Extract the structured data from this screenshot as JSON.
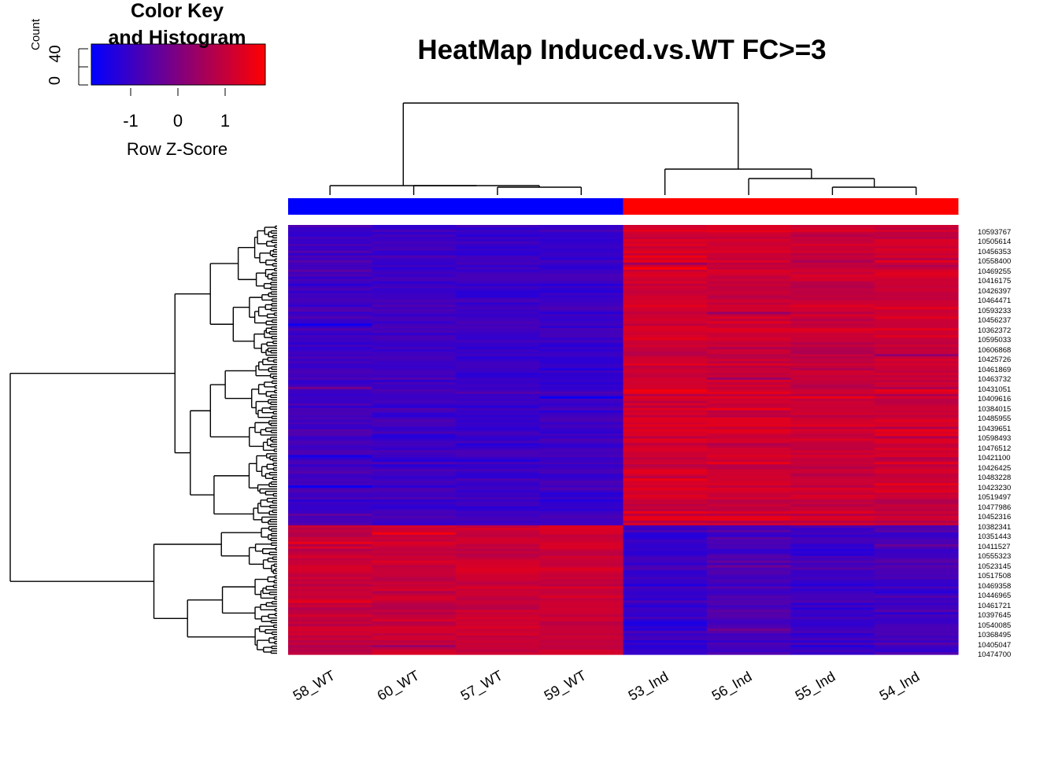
{
  "color_key": {
    "title_line1": "Color Key",
    "title_line2": "and Histogram",
    "xlabel": "Row Z-Score",
    "ylabel": "Count",
    "x_ticks": [
      "-1",
      "0",
      "1"
    ],
    "y_ticks": [
      "0",
      "40"
    ],
    "palette": [
      "#0000ff",
      "#ff0000"
    ]
  },
  "chart_data": {
    "type": "heatmap",
    "title": "HeatMap Induced.vs.WT FC>=3",
    "value_label": "Row Z-Score",
    "columns": [
      "58_WT",
      "60_WT",
      "57_WT",
      "59_WT",
      "53_Ind",
      "56_Ind",
      "55_Ind",
      "54_Ind"
    ],
    "column_groups": [
      {
        "columns": [
          "58_WT",
          "60_WT",
          "57_WT",
          "59_WT"
        ],
        "color": "#0000ff"
      },
      {
        "columns": [
          "53_Ind",
          "56_Ind",
          "55_Ind",
          "54_Ind"
        ],
        "color": "#ff0000"
      }
    ],
    "row_labels": [
      "10593767",
      "10505614",
      "10456353",
      "10558400",
      "10469255",
      "10416175",
      "10426397",
      "10464471",
      "10593233",
      "10456237",
      "10362372",
      "10595033",
      "10606868",
      "10425726",
      "10461869",
      "10463732",
      "10431051",
      "10409616",
      "10384015",
      "10485955",
      "10439651",
      "10598493",
      "10476512",
      "10421100",
      "10426425",
      "10483228",
      "10423230",
      "10519497",
      "10477986",
      "10452316",
      "10382341",
      "10351443",
      "10411527",
      "10555323",
      "10523145",
      "10517508",
      "10469358",
      "10446965",
      "10461721",
      "10397645",
      "10540085",
      "10368495",
      "10405047",
      "10474700"
    ],
    "clusters": [
      {
        "name": "",
        "rows": 128,
        "z_by_column": [
          -0.9,
          -0.95,
          -1.0,
          -1.0,
          1.15,
          1.1,
          1.0,
          1.05
        ]
      },
      {
        "name": "",
        "rows": 55,
        "z_by_column": [
          1.0,
          1.0,
          1.05,
          1.1,
          -1.05,
          -0.75,
          -0.95,
          -0.9
        ]
      }
    ],
    "z_range": [
      -1.8,
      1.8
    ],
    "colors": {
      "low": "#0000ff",
      "high": "#ff0000"
    }
  }
}
